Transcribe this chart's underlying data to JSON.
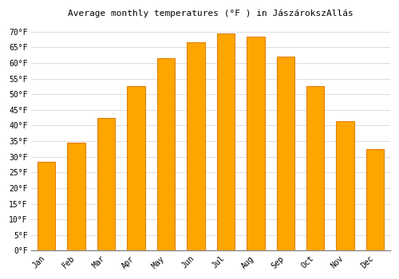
{
  "title": "Average monthly temperatures (°F ) in JászárokszAllás",
  "months": [
    "Jan",
    "Feb",
    "Mar",
    "Apr",
    "May",
    "Jun",
    "Jul",
    "Aug",
    "Sep",
    "Oct",
    "Nov",
    "Dec"
  ],
  "values": [
    28.5,
    34.5,
    42.5,
    52.5,
    61.5,
    66.5,
    69.5,
    68.5,
    62.0,
    52.5,
    41.5,
    32.5
  ],
  "bar_color": "#FFA500",
  "bar_edge_color": "#E08000",
  "background_color": "#ffffff",
  "grid_color": "#dddddd",
  "ylim": [
    0,
    73
  ],
  "yticks": [
    0,
    5,
    10,
    15,
    20,
    25,
    30,
    35,
    40,
    45,
    50,
    55,
    60,
    65,
    70
  ],
  "ytick_labels": [
    "0°F",
    "5°F",
    "10°F",
    "15°F",
    "20°F",
    "25°F",
    "30°F",
    "35°F",
    "40°F",
    "45°F",
    "50°F",
    "55°F",
    "60°F",
    "65°F",
    "70°F"
  ],
  "title_fontsize": 8,
  "tick_fontsize": 7,
  "bar_width": 0.6
}
